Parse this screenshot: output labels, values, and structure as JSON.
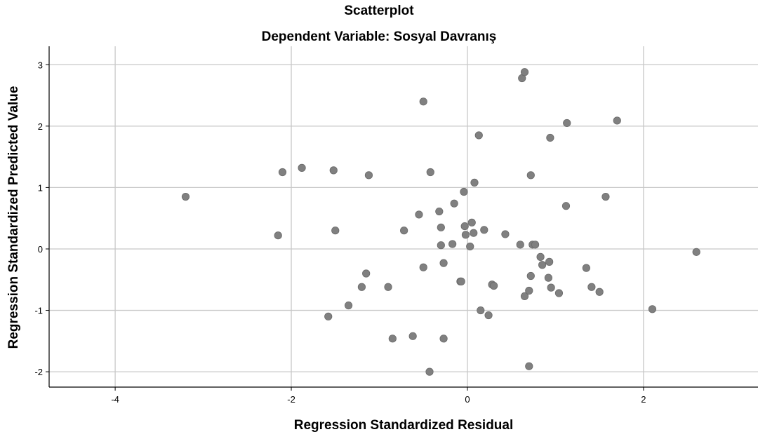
{
  "chart_data": {
    "type": "scatter",
    "title": "Scatterplot",
    "subtitle": "Dependent Variable: Sosyal Davranış",
    "xlabel": "Regression Standardized Residual",
    "ylabel": "Regression Standardized Predicted Value",
    "xlim": [
      -4.75,
      3.3
    ],
    "ylim": [
      -2.25,
      3.3
    ],
    "xticks": [
      -4,
      -2,
      0,
      2
    ],
    "yticks": [
      -2,
      -1,
      0,
      1,
      2,
      3
    ],
    "xtick_labels": [
      "-4",
      "-2",
      "0",
      "2"
    ],
    "ytick_labels": [
      "-2",
      "-1",
      "0",
      "1",
      "2",
      "3"
    ],
    "grid": true,
    "marker_color": "#808080",
    "gridline_color": "#c8c8c8",
    "x": [
      -3.2,
      -2.15,
      -2.1,
      -1.88,
      -1.52,
      -1.5,
      -1.58,
      -1.35,
      -1.2,
      -1.15,
      -1.12,
      -0.9,
      -0.85,
      -0.72,
      -0.62,
      -0.55,
      -0.5,
      -0.5,
      -0.42,
      -0.43,
      -0.3,
      -0.3,
      -0.32,
      -0.27,
      -0.27,
      -0.17,
      -0.15,
      -0.08,
      -0.07,
      -0.04,
      -0.03,
      -0.02,
      0.03,
      0.05,
      0.08,
      0.07,
      0.13,
      0.15,
      0.19,
      0.24,
      0.28,
      0.3,
      0.43,
      0.6,
      0.62,
      0.65,
      0.65,
      0.7,
      0.7,
      0.72,
      0.72,
      0.74,
      0.77,
      0.83,
      0.85,
      0.92,
      0.93,
      0.94,
      0.95,
      1.04,
      1.12,
      1.13,
      1.35,
      1.41,
      1.5,
      1.57,
      1.7,
      2.1,
      2.6
    ],
    "y": [
      0.85,
      0.22,
      1.25,
      1.32,
      1.28,
      0.3,
      -1.1,
      -0.92,
      -0.62,
      -0.4,
      1.2,
      -0.62,
      -1.46,
      0.3,
      -1.42,
      0.56,
      2.4,
      -0.3,
      1.25,
      -2.0,
      0.06,
      0.35,
      0.61,
      -0.23,
      -1.46,
      0.08,
      0.74,
      -0.53,
      -0.53,
      0.93,
      0.37,
      0.23,
      0.04,
      0.43,
      1.08,
      0.26,
      1.85,
      -1.0,
      0.31,
      -1.08,
      -0.58,
      -0.6,
      0.24,
      0.07,
      2.78,
      2.88,
      -0.77,
      -0.68,
      -1.91,
      1.2,
      -0.44,
      0.07,
      0.07,
      -0.13,
      -0.26,
      -0.47,
      -0.21,
      1.81,
      -0.63,
      -0.72,
      0.7,
      2.05,
      -0.31,
      -0.62,
      -0.7,
      0.85,
      2.09,
      -0.98,
      -0.05
    ]
  }
}
